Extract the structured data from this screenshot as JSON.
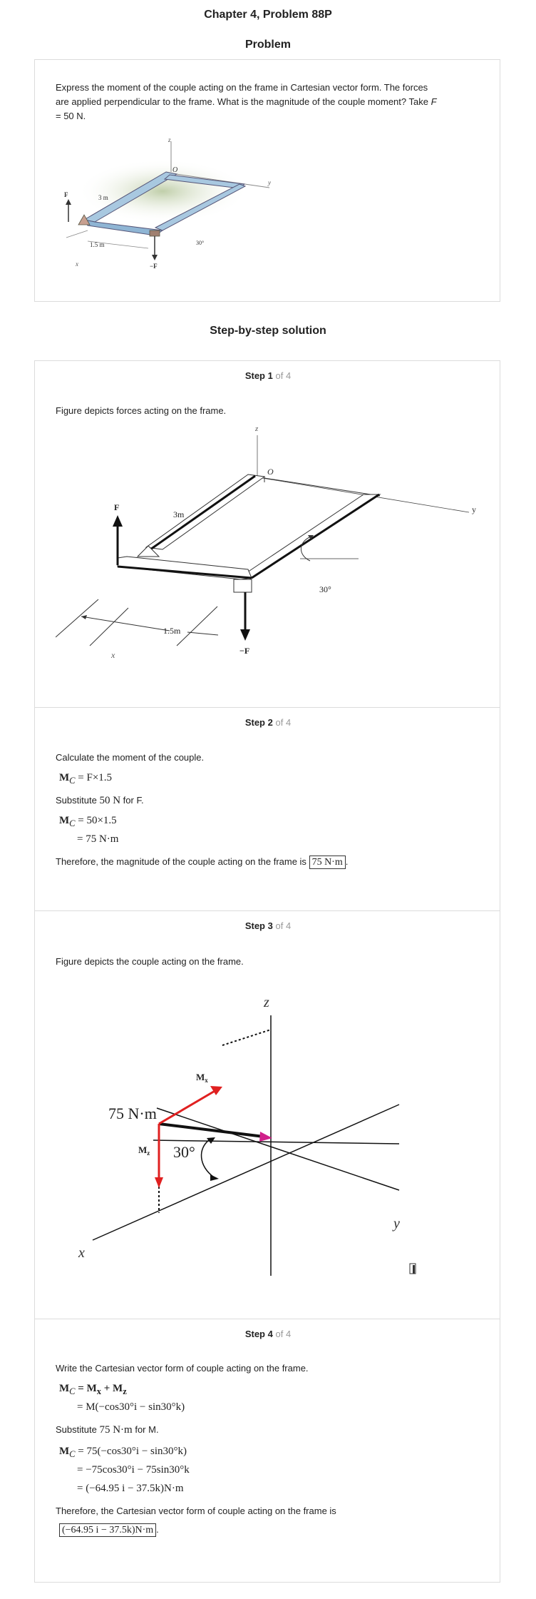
{
  "header": {
    "title": "Chapter 4, Problem 88P",
    "problem_heading": "Problem",
    "solution_heading": "Step-by-step solution"
  },
  "problem": {
    "text_line1": "Express the moment of the couple acting on the frame in Cartesian vector form. The forces",
    "text_line2": "are applied perpendicular to the frame. What is the magnitude of the couple moment? Take",
    "text_var": "F",
    "text_line3": "= 50 N.",
    "figure_labels": {
      "z": "z",
      "O": "O",
      "y": "y",
      "F": "F",
      "len3": "3 m",
      "len15": "1.5 m",
      "x": "x",
      "negF": "−F",
      "angle": "30°"
    }
  },
  "steps": [
    {
      "label": "Step",
      "num": "1",
      "of": "of 4",
      "text": "Figure depicts forces acting on the frame.",
      "figure_labels": {
        "z": "z",
        "O": "O",
        "y": "y",
        "F": "F",
        "len3": "3m",
        "len15": "1.5m",
        "x": "x",
        "negF": "−F",
        "angle": "30°"
      }
    },
    {
      "label": "Step",
      "num": "2",
      "of": "of 4",
      "intro": "Calculate the moment of the couple.",
      "eq1_lhs": "M",
      "eq1_sub": "C",
      "eq1_rhs": "= F×1.5",
      "subst_pre": "Substitute",
      "subst_val": "50 N",
      "subst_post": "for F.",
      "eq2_rhs": "= 50×1.5",
      "eq3_rhs": "= 75 N·m",
      "conclusion": "Therefore, the magnitude of the couple acting on the frame is",
      "answer": "75 N·m"
    },
    {
      "label": "Step",
      "num": "3",
      "of": "of 4",
      "text": "Figure depicts the couple acting on the frame.",
      "figure_labels": {
        "z": "z",
        "y": "y",
        "x": "x",
        "Mx": "M",
        "Mx_sub": "x",
        "Mz": "M",
        "Mz_sub": "z",
        "moment": "75 N·m",
        "angle": "30°"
      }
    },
    {
      "label": "Step",
      "num": "4",
      "of": "of 4",
      "intro": "Write the Cartesian vector form of couple acting on the frame.",
      "eq1": "= M",
      "eq1_b": "+ M",
      "eq2": "= M(−cos30°i − sin30°k)",
      "subst_pre": "Substitute",
      "subst_val": "75 N·m",
      "subst_post": "for M.",
      "eq3": "= 75(−cos30°i − sin30°k)",
      "eq4": "= −75cos30°i − 75sin30°k",
      "eq5": "= (−64.95 i − 37.5k)N·m",
      "conclusion": "Therefore, the Cartesian vector form of couple acting on the frame is",
      "answer": "(−64.95 i − 37.5k)N·m"
    }
  ],
  "colors": {
    "accent_red": "#e02020",
    "accent_magenta": "#d0208a",
    "frame_blue": "#a8c8e0"
  }
}
